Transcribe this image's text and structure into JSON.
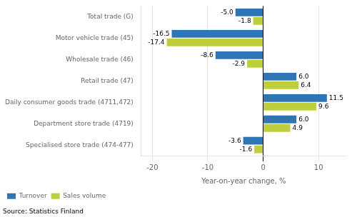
{
  "chart_data": {
    "type": "bar",
    "orientation": "horizontal",
    "categories": [
      "Total trade (G)",
      "Motor vehicle trade (45)",
      "Wholesale trade (46)",
      "Retail trade (47)",
      "Daily consumer goods trade (4711,472)",
      "Department store trade (4719)",
      "Specialised store trade (474-477)"
    ],
    "series": [
      {
        "name": "Turnover",
        "color": "#2E75B6",
        "values": [
          -5.0,
          -16.5,
          -8.6,
          6.0,
          11.5,
          6.0,
          -3.6
        ],
        "value_labels": [
          "-5.0",
          "-16.5",
          "-8.6",
          "6.0",
          "11.5",
          "6.0",
          "-3.6"
        ]
      },
      {
        "name": "Sales volume",
        "color": "#BFCE3B",
        "values": [
          -1.8,
          -17.4,
          -2.9,
          6.4,
          9.6,
          4.9,
          -1.6
        ],
        "value_labels": [
          "-1.8",
          "-17.4",
          "-2.9",
          "6.4",
          "9.6",
          "4.9",
          "-1.6"
        ]
      }
    ],
    "xlabel": "Year-on-year change, %",
    "xlim": [
      -22,
      15
    ],
    "xticks": [
      -20,
      -10,
      0,
      10
    ],
    "grid": true,
    "legend": "lower left",
    "data_labels": true,
    "annotations": [
      "Source: Statistics Finland"
    ]
  }
}
